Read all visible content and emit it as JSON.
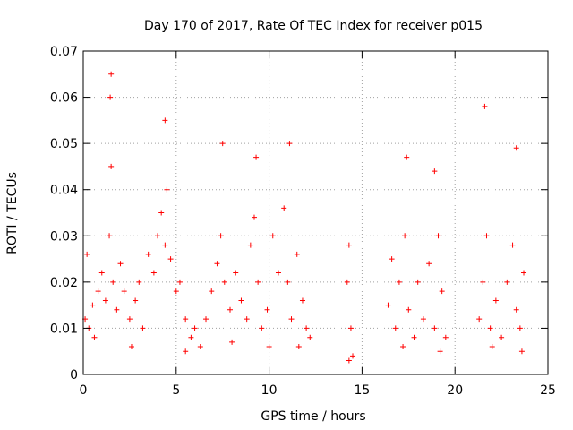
{
  "chart_data": {
    "type": "scatter",
    "title": "Day 170 of 2017, Rate Of TEC Index for receiver p015",
    "xlabel": "GPS time / hours",
    "ylabel": "ROTI / TECUs",
    "xlim": [
      0,
      25
    ],
    "ylim": [
      0,
      0.07
    ],
    "xticks": [
      "0",
      "5",
      "10",
      "15",
      "20",
      "25"
    ],
    "yticks": [
      "0",
      "0.01",
      "0.02",
      "0.03",
      "0.04",
      "0.05",
      "0.06",
      "0.07"
    ],
    "grid": true,
    "marker": "+",
    "color": "#ff0000",
    "series": [
      {
        "x": [
          0.1,
          0.3,
          0.5,
          0.8,
          1.0,
          1.2,
          1.4,
          1.5,
          1.6,
          1.8,
          2.0,
          2.2,
          2.5,
          2.8,
          3.0,
          3.2,
          3.5,
          3.8,
          4.0,
          4.2,
          4.4,
          4.5,
          4.7,
          5.0,
          5.2,
          5.5,
          5.8,
          6.0,
          6.3,
          6.6,
          6.9,
          7.2,
          7.4,
          7.6,
          7.9,
          8.2,
          8.5,
          8.8,
          9.0,
          9.2,
          9.4,
          9.6,
          9.9,
          10.2,
          10.5,
          10.8,
          11.0,
          11.2,
          11.5,
          11.8,
          12.0,
          12.2,
          14.2,
          14.3,
          14.4,
          14.5,
          16.4,
          16.6,
          16.8,
          17.0,
          17.3,
          17.5,
          17.8,
          18.0,
          18.3,
          18.6,
          18.9,
          19.1,
          19.3,
          19.5,
          21.3,
          21.5,
          21.7,
          21.9,
          22.2,
          22.5,
          22.8,
          23.1,
          23.3,
          23.5,
          23.7,
          0.2,
          1.45,
          1.5,
          4.4,
          7.5,
          9.3,
          11.1,
          17.4,
          18.9,
          21.6,
          23.3,
          0.6,
          2.6,
          5.5,
          8.0,
          10.0,
          11.6,
          14.3,
          17.2,
          19.2,
          22.0,
          23.6
        ],
        "y": [
          0.012,
          0.01,
          0.015,
          0.018,
          0.022,
          0.016,
          0.03,
          0.045,
          0.02,
          0.014,
          0.024,
          0.018,
          0.012,
          0.016,
          0.02,
          0.01,
          0.026,
          0.022,
          0.03,
          0.035,
          0.028,
          0.04,
          0.025,
          0.018,
          0.02,
          0.012,
          0.008,
          0.01,
          0.006,
          0.012,
          0.018,
          0.024,
          0.03,
          0.02,
          0.014,
          0.022,
          0.016,
          0.012,
          0.028,
          0.034,
          0.02,
          0.01,
          0.014,
          0.03,
          0.022,
          0.036,
          0.02,
          0.012,
          0.026,
          0.016,
          0.01,
          0.008,
          0.02,
          0.028,
          0.01,
          0.004,
          0.015,
          0.025,
          0.01,
          0.02,
          0.03,
          0.014,
          0.008,
          0.02,
          0.012,
          0.024,
          0.01,
          0.03,
          0.018,
          0.008,
          0.012,
          0.02,
          0.03,
          0.01,
          0.016,
          0.008,
          0.02,
          0.028,
          0.014,
          0.01,
          0.022,
          0.026,
          0.06,
          0.065,
          0.055,
          0.05,
          0.047,
          0.05,
          0.047,
          0.044,
          0.058,
          0.049,
          0.008,
          0.006,
          0.005,
          0.007,
          0.006,
          0.006,
          0.003,
          0.006,
          0.005,
          0.006,
          0.005
        ]
      }
    ]
  }
}
